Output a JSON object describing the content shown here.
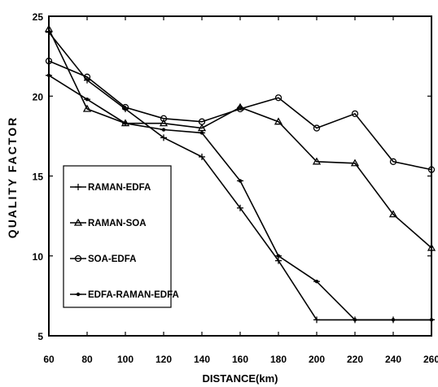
{
  "chart_data": {
    "type": "line",
    "title": "",
    "xlabel": "DISTANCE(km)",
    "ylabel": "QUALITY FACTOR",
    "xlim": [
      60,
      260
    ],
    "ylim": [
      5,
      25
    ],
    "x_ticks": [
      60,
      80,
      100,
      120,
      140,
      160,
      180,
      200,
      220,
      240,
      260
    ],
    "y_ticks": [
      5,
      10,
      15,
      20,
      25
    ],
    "grid": false,
    "legend_position": "bottom-left",
    "x": [
      60,
      80,
      100,
      120,
      140,
      160,
      180,
      200,
      220,
      240,
      260
    ],
    "series": [
      {
        "name": "RAMAN-EDFA",
        "marker": "plus",
        "color": "#000000",
        "values": [
          24.0,
          21.0,
          19.2,
          17.4,
          16.2,
          13.0,
          9.7,
          6.0,
          6.0,
          6.0,
          6.0
        ]
      },
      {
        "name": "RAMAN-SOA",
        "marker": "triangle",
        "color": "#000000",
        "values": [
          24.2,
          19.2,
          18.3,
          18.3,
          18.0,
          19.3,
          18.4,
          15.9,
          15.8,
          12.6,
          10.5
        ]
      },
      {
        "name": "SOA-EDFA",
        "marker": "circle",
        "color": "#000000",
        "values": [
          22.2,
          21.2,
          19.3,
          18.6,
          18.4,
          19.2,
          19.9,
          18.0,
          18.9,
          15.9,
          15.4
        ]
      },
      {
        "name": "EDFA-RAMAN-EDFA",
        "marker": "dot",
        "color": "#000000",
        "values": [
          21.3,
          19.8,
          18.3,
          17.9,
          17.7,
          14.7,
          10.0,
          8.4,
          6.0,
          6.0,
          6.0
        ]
      }
    ]
  }
}
